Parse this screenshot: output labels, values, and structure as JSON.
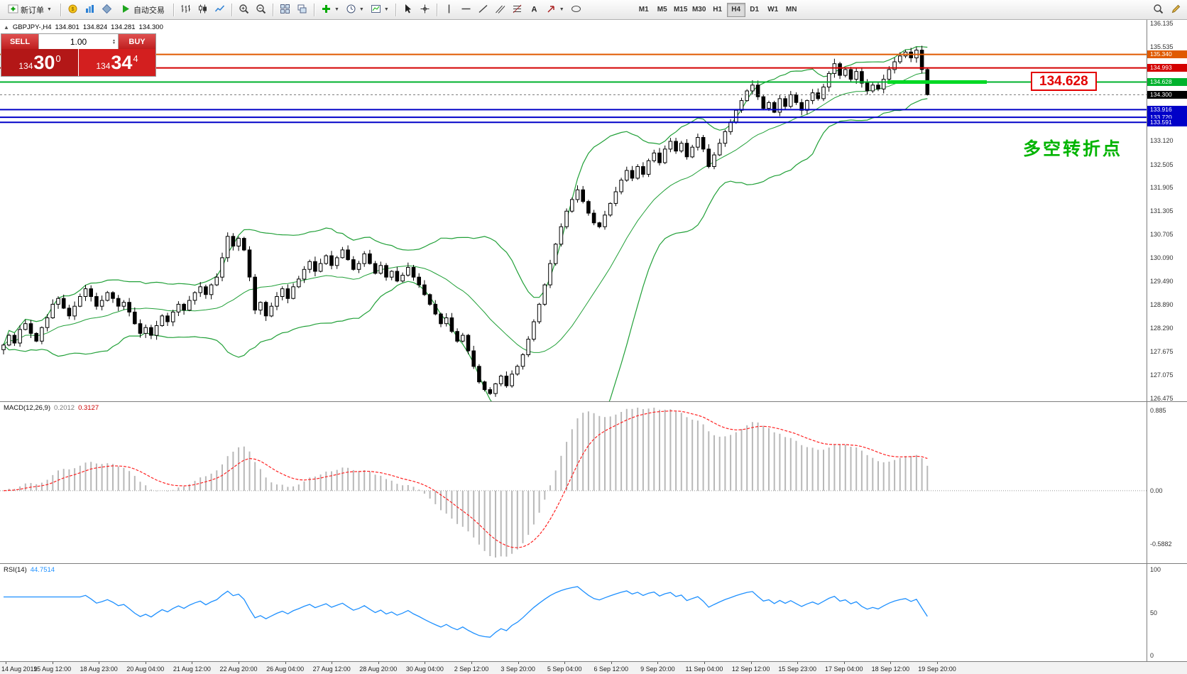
{
  "toolbar": {
    "new_order_label": "新订单",
    "autotrading_label": "自动交易",
    "timeframes": [
      "M1",
      "M5",
      "M15",
      "M30",
      "H1",
      "H4",
      "D1",
      "W1",
      "MN"
    ],
    "active_timeframe": "H4"
  },
  "symbol_info": {
    "symbol": "GBPJPY-,H4",
    "open": "134.801",
    "high": "134.824",
    "low": "134.281",
    "close": "134.300"
  },
  "trade_panel": {
    "sell_label": "SELL",
    "buy_label": "BUY",
    "volume": "1.00",
    "sell_price": {
      "main": "134",
      "pips": "30",
      "point": "0"
    },
    "buy_price": {
      "main": "134",
      "pips": "34",
      "point": "4"
    }
  },
  "callout": {
    "text": "134.628"
  },
  "annotation": {
    "text": "多空转折点"
  },
  "macd_panel": {
    "title": "MACD(12,26,9)",
    "value_main": "0.2012",
    "value_signal": "0.3127",
    "axis_labels": [
      "0.885",
      "0.00",
      "-0.5882"
    ]
  },
  "rsi_panel": {
    "title": "RSI(14)",
    "value": "44.7514",
    "axis_labels": [
      "100",
      "50",
      "0"
    ]
  },
  "price_axis_labels": [
    "136.135",
    "135.535",
    "133.120",
    "132.505",
    "131.905",
    "131.305",
    "130.705",
    "130.090",
    "129.490",
    "128.890",
    "128.290",
    "127.675",
    "127.075",
    "126.475"
  ],
  "time_axis_labels": [
    "14 Aug 2019",
    "15 Aug 12:00",
    "18 Aug 23:00",
    "20 Aug 04:00",
    "21 Aug 12:00",
    "22 Aug 20:00",
    "26 Aug 04:00",
    "27 Aug 12:00",
    "28 Aug 20:00",
    "30 Aug 04:00",
    "2 Sep 12:00",
    "3 Sep 20:00",
    "5 Sep 04:00",
    "6 Sep 12:00",
    "9 Sep 20:00",
    "11 Sep 04:00",
    "12 Sep 12:00",
    "15 Sep 23:00",
    "17 Sep 04:00",
    "18 Sep 12:00",
    "19 Sep 20:00"
  ],
  "chart_data": {
    "type": "candlestick",
    "symbol": "GBPJPY-",
    "timeframe": "H4",
    "price_range": [
      126.4,
      136.23
    ],
    "levels": [
      {
        "value": 135.34,
        "label": "135.340",
        "color": "#e05a00",
        "width": 2
      },
      {
        "value": 134.993,
        "label": "134.993",
        "color": "#d40000",
        "width": 2
      },
      {
        "value": 134.628,
        "label": "134.628",
        "color": "#00b22d",
        "width": 2,
        "highlight": true
      },
      {
        "value": 134.3,
        "label": "134.300",
        "color": "#000000",
        "width": 1,
        "style": "dash"
      },
      {
        "value": 133.916,
        "label": "133.916",
        "color": "#0000c8",
        "width": 2
      },
      {
        "value": 133.72,
        "label": "133.720",
        "color": "#0000c8",
        "width": 2
      },
      {
        "value": 133.591,
        "label": "133.591",
        "color": "#0000c8",
        "width": 2
      }
    ],
    "indicators": {
      "bollinger": {
        "period": 20,
        "deviation": 2,
        "color": "#21a038"
      },
      "macd": {
        "fast": 12,
        "slow": 26,
        "signal": 9,
        "hist_color": "#b8b8b8",
        "signal_color": "#ff2222"
      },
      "rsi": {
        "period": 14,
        "color": "#1e90ff"
      }
    },
    "closes": [
      127.85,
      128.1,
      127.9,
      128.25,
      128.4,
      128.15,
      127.95,
      128.3,
      128.55,
      128.9,
      129.05,
      128.8,
      128.6,
      128.85,
      129.1,
      129.3,
      129.1,
      128.85,
      129.0,
      129.2,
      129.05,
      128.85,
      128.95,
      128.7,
      128.4,
      128.15,
      128.3,
      128.1,
      128.35,
      128.6,
      128.45,
      128.7,
      128.9,
      128.75,
      129.0,
      129.2,
      129.35,
      129.15,
      129.4,
      129.6,
      130.1,
      130.65,
      130.4,
      130.6,
      130.3,
      129.6,
      128.75,
      128.95,
      128.6,
      128.85,
      129.1,
      129.3,
      129.05,
      129.35,
      129.55,
      129.8,
      130.0,
      129.75,
      129.95,
      130.15,
      129.9,
      130.1,
      130.3,
      130.05,
      129.8,
      129.95,
      130.2,
      129.95,
      129.7,
      129.9,
      129.6,
      129.75,
      129.5,
      129.65,
      129.85,
      129.6,
      129.4,
      129.15,
      128.9,
      128.65,
      128.4,
      128.55,
      128.2,
      127.95,
      128.1,
      127.7,
      127.3,
      126.9,
      126.7,
      126.6,
      126.85,
      127.05,
      126.8,
      127.1,
      127.3,
      127.6,
      128.0,
      128.45,
      128.9,
      129.4,
      129.95,
      130.45,
      130.9,
      131.3,
      131.6,
      131.85,
      131.55,
      131.25,
      131.0,
      130.9,
      131.2,
      131.5,
      131.8,
      132.1,
      132.35,
      132.15,
      132.45,
      132.25,
      132.6,
      132.8,
      132.55,
      132.9,
      133.1,
      132.85,
      133.05,
      132.7,
      132.95,
      133.2,
      132.9,
      132.45,
      132.75,
      133.05,
      133.35,
      133.6,
      133.9,
      134.15,
      134.4,
      134.55,
      134.25,
      133.95,
      134.1,
      133.85,
      134.2,
      134.0,
      134.3,
      134.1,
      133.9,
      134.15,
      134.35,
      134.2,
      134.5,
      134.85,
      135.1,
      134.8,
      134.95,
      134.7,
      134.9,
      134.6,
      134.4,
      134.55,
      134.45,
      134.7,
      134.95,
      135.15,
      135.3,
      135.4,
      135.25,
      135.45,
      134.95,
      134.3
    ]
  }
}
